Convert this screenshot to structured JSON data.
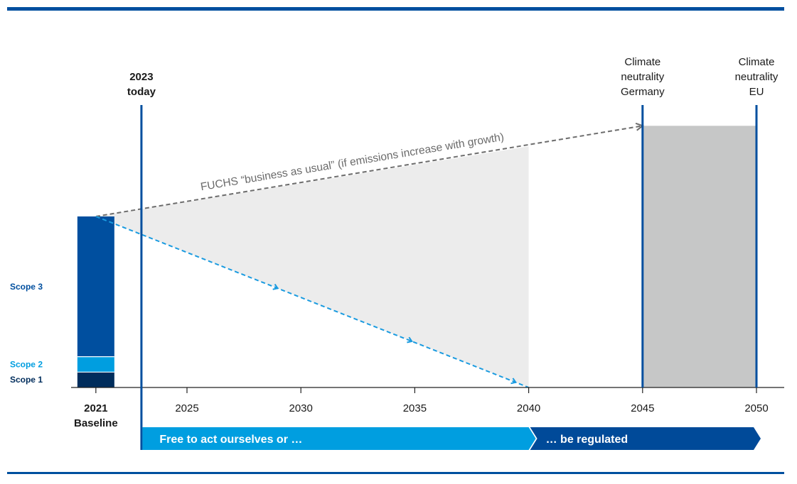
{
  "chart_data": {
    "type": "area",
    "x_ticks": [
      "2025",
      "2030",
      "2035",
      "2040",
      "2045",
      "2050"
    ],
    "x_range": [
      2020.2,
      2051.3
    ],
    "baseline": {
      "year": "2021",
      "label": "Baseline"
    },
    "stack": [
      {
        "name": "Scope 1",
        "value": 9
      },
      {
        "name": "Scope 2",
        "value": 9
      },
      {
        "name": "Scope 3",
        "value": 82
      }
    ],
    "y_range": [
      0,
      100
    ],
    "business_as_usual": {
      "label": "FUCHS “business as usual” (if emissions increase with growth)",
      "x": [
        2021,
        2045
      ],
      "y": [
        100,
        153
      ]
    },
    "reduction_path": {
      "x": [
        2021,
        2040
      ],
      "y": [
        100,
        0
      ]
    },
    "gap_area": {
      "x": [
        2021,
        2040
      ],
      "upper": [
        100,
        141
      ],
      "lower": [
        100,
        0
      ]
    },
    "neutrality_band": {
      "x": [
        2045,
        2050
      ],
      "y": 153
    },
    "milestones": [
      {
        "x": 2023,
        "lines": [
          "2023",
          "today"
        ],
        "bold": true
      },
      {
        "x": 2045,
        "lines": [
          "Climate",
          "neutrality",
          "Germany"
        ],
        "bold": false
      },
      {
        "x": 2050,
        "lines": [
          "Climate",
          "neutrality",
          "EU"
        ],
        "bold": false
      }
    ],
    "phases": [
      {
        "label": "Free to act ourselves or …",
        "from": 2023,
        "to": 2040,
        "color": "#009ee0"
      },
      {
        "label": "… be regulated",
        "from": 2040,
        "to": 2050,
        "color": "#004a99"
      }
    ],
    "colors": {
      "scope1": "#002d5c",
      "scope2": "#009ee0",
      "scope3": "#004f9f",
      "milestone_line": "#004f9f",
      "bau_line": "#6d6d6d",
      "reduction_line": "#1a9be0",
      "gap_fill": "#ececec",
      "band_fill": "#c6c7c7",
      "rule": "#004f9f"
    }
  }
}
